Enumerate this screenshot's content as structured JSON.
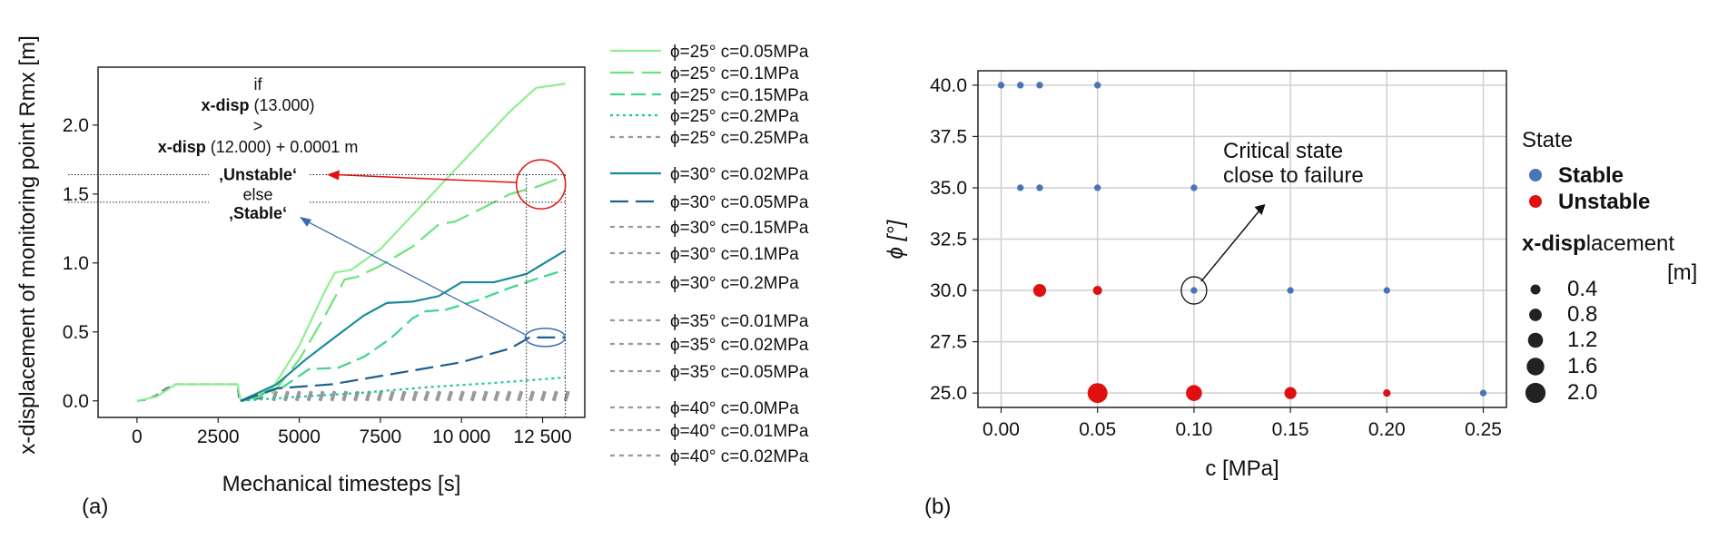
{
  "panels": {
    "a": "(a)",
    "b": "(b)"
  },
  "chart_data": [
    {
      "type": "line",
      "xlabel": "Mechanical timesteps [s]",
      "ylabel": "x-displacement of monitoring point Rmx [m]",
      "xlim": [
        -1200,
        13800
      ],
      "ylim": [
        -0.12,
        2.42
      ],
      "xticks": [
        0,
        2500,
        5000,
        7500,
        10000,
        12500
      ],
      "xtick_labels": [
        "0",
        "2500",
        "5000",
        "7500",
        "10 000",
        "12 500"
      ],
      "yticks": [
        0.0,
        0.5,
        1.0,
        1.5,
        2.0
      ],
      "ytick_labels": [
        "0.0",
        "0.5",
        "1.0",
        "1.5",
        "2.0"
      ],
      "series": [
        {
          "name": "ϕ=25° c=0.05MPa",
          "color": "#90ee90",
          "dash": "",
          "width": 2.2,
          "x": [
            0,
            600,
            1200,
            3100,
            3200,
            3600,
            4200,
            5000,
            5800,
            6100,
            6600,
            7500,
            8500,
            9500,
            10500,
            11500,
            12300,
            13200
          ],
          "y": [
            0,
            0.03,
            0.12,
            0.12,
            0.0,
            0.02,
            0.1,
            0.4,
            0.8,
            0.93,
            0.95,
            1.1,
            1.35,
            1.6,
            1.85,
            2.1,
            2.27,
            2.3
          ]
        },
        {
          "name": "ϕ=25° c=0.1MPa",
          "color": "#6fe27a",
          "dash": "26,9",
          "width": 2.2,
          "x": [
            3200,
            4200,
            5000,
            5800,
            6400,
            6800,
            7500,
            8500,
            9300,
            9800,
            10500,
            11500,
            12300,
            13200
          ],
          "y": [
            0,
            0.06,
            0.3,
            0.62,
            0.88,
            0.9,
            0.98,
            1.12,
            1.28,
            1.3,
            1.38,
            1.5,
            1.55,
            1.63
          ]
        },
        {
          "name": "ϕ=25° c=0.15MPa",
          "color": "#3fd58e",
          "dash": "16,7",
          "width": 2.2,
          "x": [
            3200,
            4500,
            5300,
            6200,
            7000,
            7800,
            8500,
            8900,
            9500,
            10500,
            11500,
            12500,
            13200
          ],
          "y": [
            0,
            0.1,
            0.23,
            0.24,
            0.32,
            0.45,
            0.6,
            0.65,
            0.66,
            0.73,
            0.82,
            0.9,
            0.95
          ]
        },
        {
          "name": "ϕ=25° c=0.2MPa",
          "color": "#18c6a6",
          "dash": "3,4",
          "width": 2.2,
          "x": [
            3200,
            5000,
            7000,
            9000,
            11000,
            13200
          ],
          "y": [
            0,
            0.03,
            0.06,
            0.1,
            0.13,
            0.17
          ]
        },
        {
          "name": "ϕ=25° c=0.25MPa",
          "color": "#999999",
          "dash": "5,5",
          "width": 2.2,
          "x": [],
          "y": []
        },
        {
          "name": "ϕ=30° c=0.02MPa",
          "color": "#1b8a99",
          "dash": "",
          "width": 2.2,
          "x": [
            3200,
            4300,
            5200,
            6200,
            7000,
            7700,
            8500,
            9300,
            10000,
            11000,
            12000,
            13200
          ],
          "y": [
            0,
            0.12,
            0.3,
            0.48,
            0.62,
            0.71,
            0.72,
            0.76,
            0.86,
            0.86,
            0.92,
            1.09
          ]
        },
        {
          "name": "ϕ=30° c=0.05MPa",
          "color": "#1f5f8f",
          "dash": "20,8",
          "width": 2.2,
          "x": [
            3200,
            4300,
            6000,
            8000,
            10000,
            11500,
            12100,
            13200
          ],
          "y": [
            0,
            0.09,
            0.12,
            0.2,
            0.28,
            0.38,
            0.46,
            0.46
          ]
        },
        {
          "name": "ϕ=30° c=0.15MPa",
          "color": "#999999",
          "dash": "5,5",
          "width": 2.2,
          "x": [],
          "y": []
        },
        {
          "name": "ϕ=30° c=0.1MPa",
          "color": "#999999",
          "dash": "5,5",
          "width": 2.2,
          "x": [],
          "y": []
        },
        {
          "name": "ϕ=30° c=0.2MPa",
          "color": "#999999",
          "dash": "5,5",
          "width": 2.2,
          "x": [],
          "y": []
        },
        {
          "name": "ϕ=35° c=0.01MPa",
          "color": "#999999",
          "dash": "5,5",
          "width": 2.2,
          "x": [],
          "y": []
        },
        {
          "name": "ϕ=35° c=0.02MPa",
          "color": "#999999",
          "dash": "5,5",
          "width": 2.2,
          "x": [],
          "y": []
        },
        {
          "name": "ϕ=35° c=0.05MPa",
          "color": "#999999",
          "dash": "5,5",
          "width": 2.2,
          "x": [],
          "y": []
        },
        {
          "name": "ϕ=40° c=0.0MPa",
          "color": "#999999",
          "dash": "5,5",
          "width": 2.2,
          "x": [],
          "y": []
        },
        {
          "name": "ϕ=40° c=0.01MPa",
          "color": "#999999",
          "dash": "5,5",
          "width": 2.2,
          "x": [],
          "y": []
        },
        {
          "name": "ϕ=40° c=0.02MPa",
          "color": "#999999",
          "dash": "5,5",
          "width": 2.2,
          "x": [],
          "y": []
        }
      ],
      "common_curve": {
        "color": "#5c7a96",
        "x": [
          0,
          300,
          600,
          900,
          1200,
          3100,
          3150,
          3600,
          4000
        ],
        "y": [
          0,
          0.01,
          0.04,
          0.09,
          0.12,
          0.12,
          0.0,
          0.01,
          0.03
        ]
      },
      "gray_cluster": {
        "color": "#999999",
        "x_start": 4200,
        "x_end": 13200,
        "count": 26,
        "y_max": 0.07
      },
      "annotation": {
        "line1": "if",
        "line2_bold": "x-disp",
        "line2_rest": " (13.000)",
        "line3": ">",
        "line4_bold": "x-disp",
        "line4_rest": " (12.000) + 0.0001 m",
        "unstable": "‚Unstable‘",
        "else": "else",
        "stable": "‚Stable‘",
        "unstable_color": "#e01010",
        "stable_color": "#3a6bb0",
        "vlines_x": [
          12000,
          13200
        ],
        "hline_y_upper": 1.64,
        "hline_y_lower": 1.44,
        "red_circle": {
          "x": 12450,
          "y": 1.57
        },
        "blue_ellipse": {
          "x": 12580,
          "y": 0.46
        }
      }
    },
    {
      "type": "scatter",
      "xlabel": "c [MPa]",
      "ylabel": "ϕ [°]",
      "xlim": [
        -0.012,
        0.262
      ],
      "ylim": [
        24.3,
        40.7
      ],
      "xticks": [
        0.0,
        0.05,
        0.1,
        0.15,
        0.2,
        0.25
      ],
      "xtick_labels": [
        "0.00",
        "0.05",
        "0.10",
        "0.15",
        "0.20",
        "0.25"
      ],
      "yticks": [
        25.0,
        27.5,
        30.0,
        32.5,
        35.0,
        37.5,
        40.0
      ],
      "ytick_labels": [
        "25.0",
        "27.5",
        "30.0",
        "32.5",
        "35.0",
        "37.5",
        "40.0"
      ],
      "grid": true,
      "stable_color": "#4a74b8",
      "unstable_color": "#e01010",
      "points": [
        {
          "c": 0.0,
          "phi": 40,
          "state": "Stable",
          "disp": 0.03
        },
        {
          "c": 0.01,
          "phi": 40,
          "state": "Stable",
          "disp": 0.03
        },
        {
          "c": 0.02,
          "phi": 40,
          "state": "Stable",
          "disp": 0.03
        },
        {
          "c": 0.05,
          "phi": 40,
          "state": "Stable",
          "disp": 0.03
        },
        {
          "c": 0.01,
          "phi": 35,
          "state": "Stable",
          "disp": 0.03
        },
        {
          "c": 0.02,
          "phi": 35,
          "state": "Stable",
          "disp": 0.03
        },
        {
          "c": 0.05,
          "phi": 35,
          "state": "Stable",
          "disp": 0.03
        },
        {
          "c": 0.1,
          "phi": 35,
          "state": "Stable",
          "disp": 0.03
        },
        {
          "c": 0.02,
          "phi": 30,
          "state": "Unstable",
          "disp": 1.09
        },
        {
          "c": 0.05,
          "phi": 30,
          "state": "Unstable",
          "disp": 0.46
        },
        {
          "c": 0.1,
          "phi": 30,
          "state": "Stable",
          "disp": 0.03
        },
        {
          "c": 0.15,
          "phi": 30,
          "state": "Stable",
          "disp": 0.03
        },
        {
          "c": 0.2,
          "phi": 30,
          "state": "Stable",
          "disp": 0.03
        },
        {
          "c": 0.05,
          "phi": 25,
          "state": "Unstable",
          "disp": 2.3
        },
        {
          "c": 0.1,
          "phi": 25,
          "state": "Unstable",
          "disp": 1.63
        },
        {
          "c": 0.15,
          "phi": 25,
          "state": "Unstable",
          "disp": 0.95
        },
        {
          "c": 0.2,
          "phi": 25,
          "state": "Unstable",
          "disp": 0.17
        },
        {
          "c": 0.25,
          "phi": 25,
          "state": "Stable",
          "disp": 0.03
        }
      ],
      "annotation": {
        "line1": "Critical state",
        "line2": "close to failure",
        "target": {
          "c": 0.1,
          "phi": 30
        },
        "arrow_head": {
          "c": 0.137,
          "phi": 34.2
        }
      },
      "legend": {
        "state_title": "State",
        "stable_label": "Stable",
        "unstable_label": "Unstable",
        "size_title_bold": "x-disp",
        "size_title_rest": "lacement",
        "size_unit": "[m]",
        "sizes": [
          "0.4",
          "0.8",
          "1.2",
          "1.6",
          "2.0"
        ]
      }
    }
  ]
}
